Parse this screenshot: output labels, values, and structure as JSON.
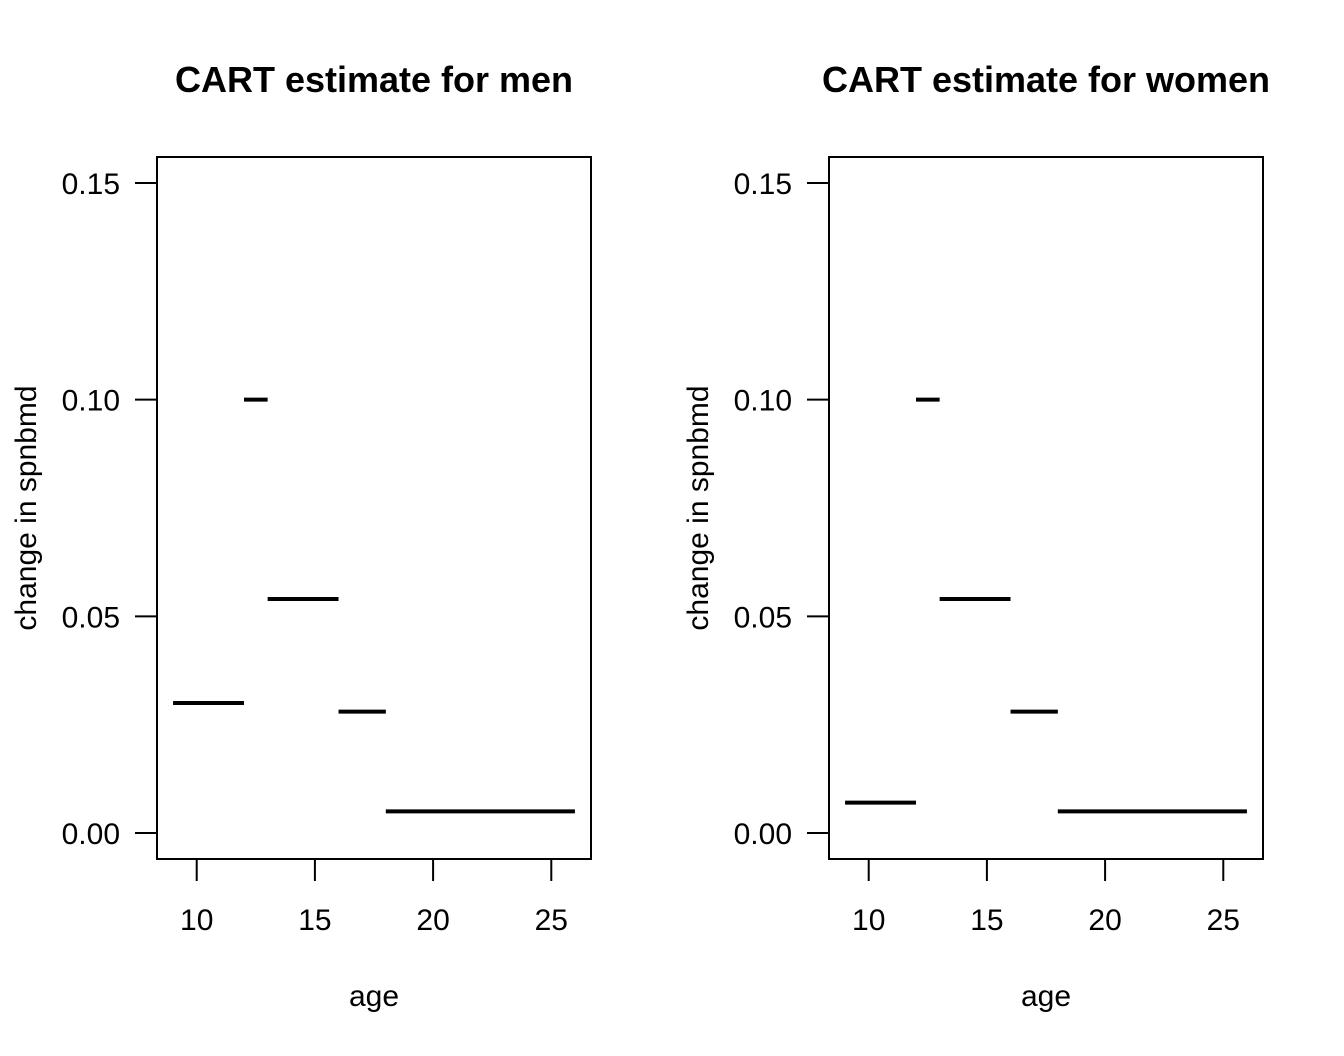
{
  "chart_data": [
    {
      "type": "line",
      "title": "CART estimate for men",
      "xlabel": "age",
      "ylabel": "change in spnbmd",
      "xlim": [
        8.32,
        26.68
      ],
      "ylim": [
        -0.006,
        0.156
      ],
      "xticks": [
        "10",
        "15",
        "20",
        "25"
      ],
      "yticks": [
        "0.00",
        "0.05",
        "0.10",
        "0.15"
      ],
      "segments": [
        {
          "x0": 9,
          "x1": 12,
          "y": 0.03
        },
        {
          "x0": 12,
          "x1": 13,
          "y": 0.1
        },
        {
          "x0": 13,
          "x1": 16,
          "y": 0.054
        },
        {
          "x0": 16,
          "x1": 18,
          "y": 0.028
        },
        {
          "x0": 18,
          "x1": 26,
          "y": 0.005
        }
      ]
    },
    {
      "type": "line",
      "title": "CART estimate for women",
      "xlabel": "age",
      "ylabel": "change in spnbmd",
      "xlim": [
        8.32,
        26.68
      ],
      "ylim": [
        -0.006,
        0.156
      ],
      "xticks": [
        "10",
        "15",
        "20",
        "25"
      ],
      "yticks": [
        "0.00",
        "0.05",
        "0.10",
        "0.15"
      ],
      "segments": [
        {
          "x0": 9,
          "x1": 12,
          "y": 0.007
        },
        {
          "x0": 12,
          "x1": 13,
          "y": 0.1
        },
        {
          "x0": 13,
          "x1": 16,
          "y": 0.054
        },
        {
          "x0": 16,
          "x1": 18,
          "y": 0.028
        },
        {
          "x0": 18,
          "x1": 26,
          "y": 0.005
        }
      ]
    }
  ]
}
